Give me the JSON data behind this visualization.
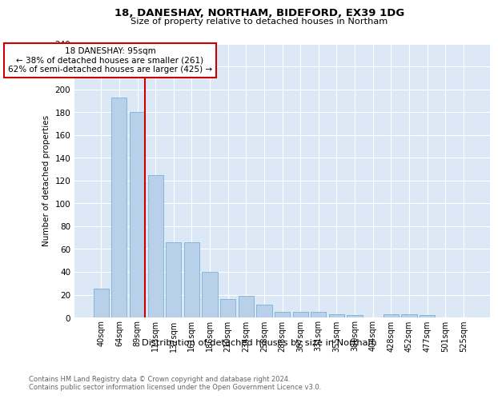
{
  "title1": "18, DANESHAY, NORTHAM, BIDEFORD, EX39 1DG",
  "title2": "Size of property relative to detached houses in Northam",
  "xlabel": "Distribution of detached houses by size in Northam",
  "ylabel": "Number of detached properties",
  "footnote": "Contains HM Land Registry data © Crown copyright and database right 2024.\nContains public sector information licensed under the Open Government Licence v3.0.",
  "bar_labels": [
    "40sqm",
    "64sqm",
    "89sqm",
    "113sqm",
    "137sqm",
    "161sqm",
    "186sqm",
    "210sqm",
    "234sqm",
    "258sqm",
    "283sqm",
    "307sqm",
    "331sqm",
    "355sqm",
    "380sqm",
    "404sqm",
    "428sqm",
    "452sqm",
    "477sqm",
    "501sqm",
    "525sqm"
  ],
  "bar_values": [
    25,
    193,
    180,
    125,
    66,
    66,
    40,
    16,
    19,
    11,
    5,
    5,
    5,
    3,
    2,
    0,
    3,
    3,
    2,
    0,
    0
  ],
  "bar_color": "#b8d0ea",
  "bar_edge_color": "#7aafd4",
  "property_bar_index": 2,
  "annotation_title": "18 DANESHAY: 95sqm",
  "annotation_line1": "← 38% of detached houses are smaller (261)",
  "annotation_line2": "62% of semi-detached houses are larger (425) →",
  "vline_color": "#cc0000",
  "annotation_box_color": "#ffffff",
  "annotation_box_edge": "#cc0000",
  "ylim": [
    0,
    240
  ],
  "yticks": [
    0,
    20,
    40,
    60,
    80,
    100,
    120,
    140,
    160,
    180,
    200,
    220,
    240
  ],
  "plot_bg_color": "#dce8f5",
  "grid_color": "#ffffff",
  "fig_bg_color": "#ffffff"
}
